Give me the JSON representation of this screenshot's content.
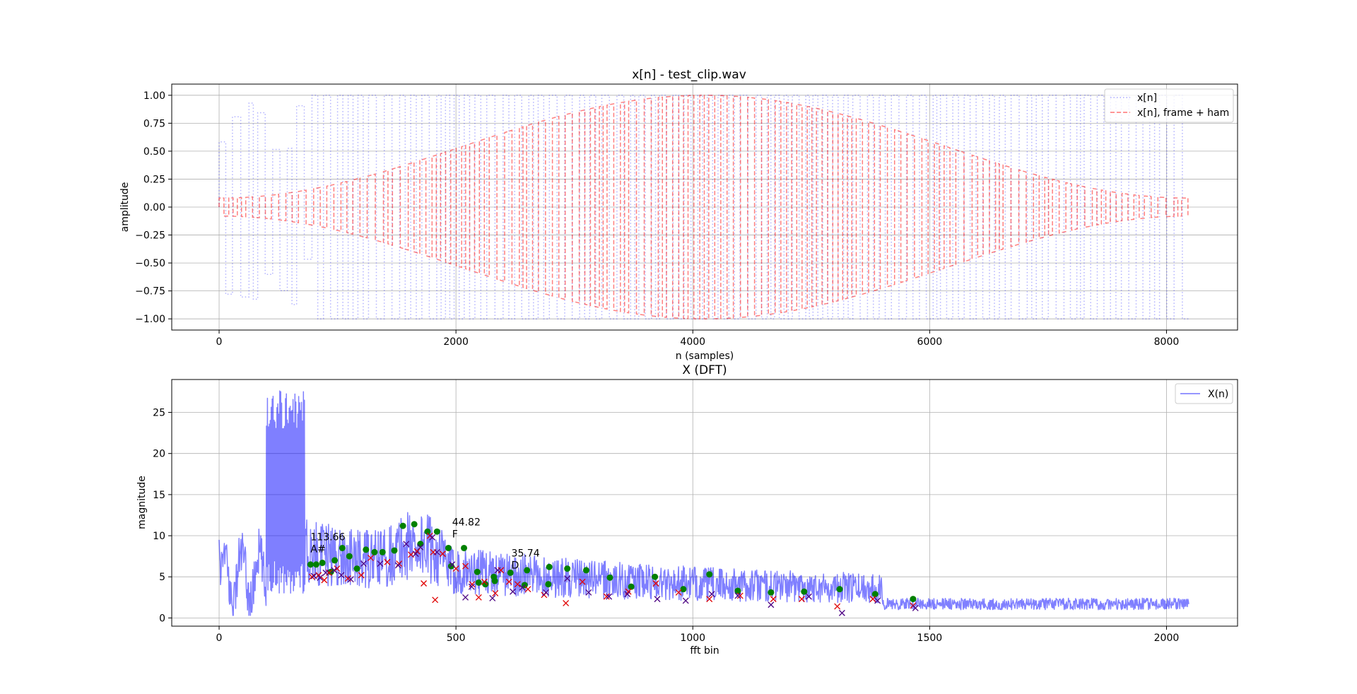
{
  "chart_data": [
    {
      "type": "line",
      "title": "x[n] - test_clip.wav",
      "xlabel": "n (samples)",
      "ylabel": "amplitude",
      "xlim": [
        -400,
        8600
      ],
      "ylim": [
        -1.1,
        1.1
      ],
      "xticks": [
        0,
        2000,
        4000,
        6000,
        8000
      ],
      "yticks": [
        1.0,
        0.75,
        0.5,
        0.25,
        0.0,
        -0.25,
        -0.5,
        -0.75,
        -1.0
      ],
      "ytick_labels": [
        "1.00",
        "0.75",
        "0.50",
        "0.25",
        "0.00",
        "−0.25",
        "−0.50",
        "−0.75",
        "−1.00"
      ],
      "grid": true,
      "legend_position": "top-right",
      "n_samples": 8192,
      "series": [
        {
          "name": "x[n]",
          "color": "#0000ff",
          "style": "dotted",
          "peak_amplitude": 1.0
        },
        {
          "name": "x[n], frame + ham",
          "color": "#ff0000",
          "style": "dashed",
          "peak_amplitude": 1.0,
          "window": "hamming"
        }
      ]
    },
    {
      "type": "line",
      "title": "X (DFT)",
      "xlabel": "fft bin",
      "ylabel": "magnitude",
      "xlim": [
        -100,
        2150
      ],
      "ylim": [
        -1,
        29
      ],
      "xticks": [
        0,
        500,
        1000,
        1500,
        2000
      ],
      "yticks": [
        0,
        5,
        10,
        15,
        20,
        25
      ],
      "grid": true,
      "legend_position": "top-right",
      "series": [
        {
          "name": "X(n)",
          "color": "#0000ff",
          "style": "solid",
          "n_bins": 2048,
          "max_magnitude": 28
        }
      ],
      "peaks_green": [
        [
          193,
          6.5
        ],
        [
          205,
          6.5
        ],
        [
          218,
          6.7
        ],
        [
          236,
          5.6
        ],
        [
          244,
          7
        ],
        [
          260,
          8.5
        ],
        [
          275,
          7.5
        ],
        [
          291,
          6
        ],
        [
          310,
          8.3
        ],
        [
          328,
          8
        ],
        [
          345,
          8
        ],
        [
          370,
          8.2
        ],
        [
          388,
          11.2
        ],
        [
          412,
          11.4
        ],
        [
          425,
          9
        ],
        [
          440,
          10.5
        ],
        [
          460,
          10.5
        ],
        [
          484,
          8.5
        ],
        [
          490,
          6.3
        ],
        [
          517,
          8.5
        ],
        [
          545,
          5.6
        ],
        [
          548,
          4.3
        ],
        [
          562,
          4.1
        ],
        [
          580,
          5
        ],
        [
          582,
          4.5
        ],
        [
          615,
          5.5
        ],
        [
          645,
          4
        ],
        [
          650,
          5.8
        ],
        [
          695,
          4.1
        ],
        [
          697,
          6.2
        ],
        [
          735,
          6
        ],
        [
          775,
          5.8
        ],
        [
          825,
          4.9
        ],
        [
          870,
          3.8
        ],
        [
          920,
          5
        ],
        [
          980,
          3.5
        ],
        [
          1035,
          5.3
        ],
        [
          1095,
          3.3
        ],
        [
          1165,
          3.1
        ],
        [
          1235,
          3.2
        ],
        [
          1310,
          3.5
        ],
        [
          1385,
          2.9
        ],
        [
          1465,
          2.3
        ]
      ],
      "peaks_red": [
        [
          196,
          5
        ],
        [
          210,
          5.2
        ],
        [
          222,
          4.6
        ],
        [
          232,
          5.5
        ],
        [
          249,
          6
        ],
        [
          272,
          4.8
        ],
        [
          300,
          5.2
        ],
        [
          320,
          7.3
        ],
        [
          355,
          6.8
        ],
        [
          380,
          6.6
        ],
        [
          405,
          7.7
        ],
        [
          418,
          8.1
        ],
        [
          432,
          4.2
        ],
        [
          445,
          10
        ],
        [
          452,
          8
        ],
        [
          456,
          2.2
        ],
        [
          472,
          7.8
        ],
        [
          500,
          6
        ],
        [
          520,
          6.3
        ],
        [
          534,
          4.1
        ],
        [
          548,
          2.5
        ],
        [
          560,
          4.4
        ],
        [
          583,
          3
        ],
        [
          595,
          5.8
        ],
        [
          612,
          4.4
        ],
        [
          630,
          4.1
        ],
        [
          652,
          3.5
        ],
        [
          686,
          2.8
        ],
        [
          732,
          1.8
        ],
        [
          767,
          4.4
        ],
        [
          818,
          2.6
        ],
        [
          864,
          3.2
        ],
        [
          922,
          4.2
        ],
        [
          970,
          3.1
        ],
        [
          1035,
          2.3
        ],
        [
          1100,
          2.7
        ],
        [
          1170,
          2.3
        ],
        [
          1230,
          2.3
        ],
        [
          1305,
          1.4
        ],
        [
          1380,
          2.3
        ],
        [
          1465,
          1.5
        ]
      ],
      "peaks_dark": [
        [
          200,
          5.1
        ],
        [
          213,
          4.9
        ],
        [
          225,
          5.5
        ],
        [
          243,
          5.8
        ],
        [
          258,
          5.2
        ],
        [
          278,
          4.7
        ],
        [
          305,
          6.6
        ],
        [
          340,
          6.6
        ],
        [
          378,
          6.4
        ],
        [
          395,
          9
        ],
        [
          415,
          7.8
        ],
        [
          425,
          8.6
        ],
        [
          450,
          9.8
        ],
        [
          460,
          8
        ],
        [
          492,
          6.5
        ],
        [
          520,
          2.5
        ],
        [
          533,
          3.8
        ],
        [
          577,
          2.4
        ],
        [
          588,
          5.8
        ],
        [
          620,
          3.2
        ],
        [
          640,
          3.7
        ],
        [
          690,
          3.1
        ],
        [
          735,
          4.8
        ],
        [
          780,
          3.1
        ],
        [
          823,
          2.6
        ],
        [
          862,
          2.9
        ],
        [
          925,
          2.3
        ],
        [
          985,
          2.1
        ],
        [
          1040,
          2.9
        ],
        [
          1095,
          2.7
        ],
        [
          1165,
          1.6
        ],
        [
          1245,
          2.6
        ],
        [
          1315,
          0.6
        ],
        [
          1390,
          2.1
        ],
        [
          1470,
          1.2
        ]
      ],
      "annotations": [
        {
          "bin": 193,
          "mag": 8.0,
          "value": "113.66",
          "note": "A#"
        },
        {
          "bin": 492,
          "mag": 9.8,
          "value": "44.82",
          "note": "F"
        },
        {
          "bin": 617,
          "mag": 6.0,
          "value": "35.74",
          "note": "D"
        }
      ]
    }
  ]
}
